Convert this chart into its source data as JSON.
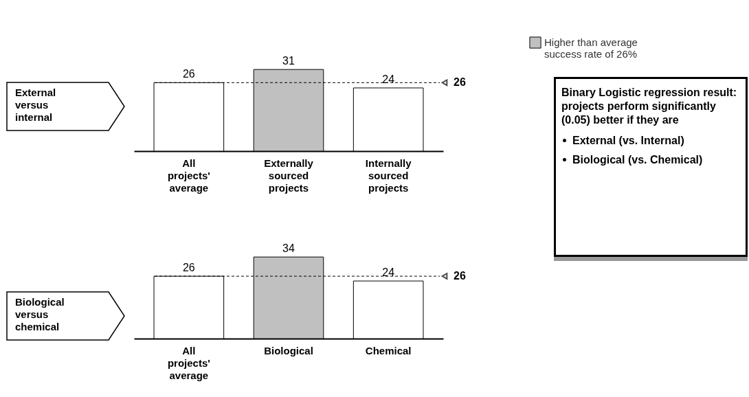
{
  "chart_data": [
    {
      "type": "bar",
      "annotations": [
        "External versus internal"
      ],
      "categories": [
        "All projects' average",
        "Externally sourced projects",
        "Internally sourced projects"
      ],
      "series": [
        {
          "name": "Higher than average success rate of 26%",
          "color": "#c0c0c0",
          "values": [
            null,
            31,
            null
          ]
        },
        {
          "color": "#ffffff",
          "values": [
            26,
            null,
            24
          ]
        }
      ],
      "data_labels": true,
      "legend": "top right",
      "ref_lines": [
        {
          "axis": "y",
          "value": 26,
          "label": "26",
          "line_style": "dashed"
        }
      ]
    },
    {
      "type": "bar",
      "annotations": [
        "Biological versus chemical"
      ],
      "categories": [
        "All projects' average",
        "Biological",
        "Chemical"
      ],
      "series": [
        {
          "color": "#c0c0c0",
          "values": [
            null,
            34,
            null
          ]
        },
        {
          "color": "#ffffff",
          "values": [
            26,
            null,
            24
          ]
        }
      ],
      "data_labels": true,
      "ref_lines": [
        {
          "axis": "y",
          "value": 26,
          "label": "26",
          "line_style": "dashed"
        }
      ]
    },
    {
      "type": "other",
      "title": "Binary Logistic regression result: projects perform significantly (0.05) better if they are",
      "annotations": [
        "External (vs. Internal)",
        "Biological (vs. Chemical)"
      ]
    }
  ]
}
